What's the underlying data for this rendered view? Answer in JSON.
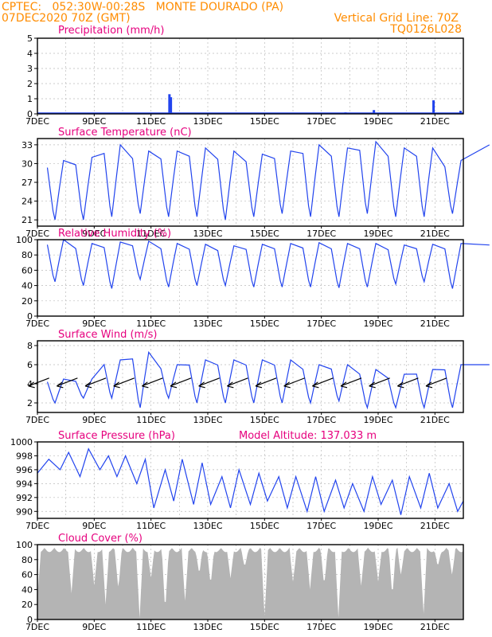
{
  "header": {
    "line1": "CPTEC:   052:30W-00:28S   MONTE DOURADO (PA)",
    "line2": "07DEC2020 70Z (GMT)",
    "grid_note": "Vertical Grid Line: 70Z",
    "run_id": "TQ0126L028"
  },
  "colors": {
    "header": "#ff8c00",
    "panel_title": "#e6007e",
    "series": "#2244ee",
    "cloud_fill": "#b4b4b4",
    "grid": "#bbbbbb"
  },
  "x_tick_labels": [
    "7DEC",
    "9DEC",
    "11DEC",
    "13DEC",
    "15DEC",
    "17DEC",
    "19DEC",
    "21DEC"
  ],
  "chart_data": [
    {
      "id": "precip",
      "type": "bar",
      "title": "Precipitation (mm/h)",
      "x_days": [
        7,
        22
      ],
      "ylim": [
        0,
        5
      ],
      "yticks": [
        0,
        1,
        2,
        3,
        4,
        5
      ],
      "events": [
        [
          9.85,
          0.05
        ],
        [
          11.65,
          1.3
        ],
        [
          11.7,
          1.1
        ],
        [
          17.85,
          0.1
        ],
        [
          18.85,
          0.25
        ],
        [
          20.95,
          0.9
        ],
        [
          21.9,
          0.2
        ]
      ]
    },
    {
      "id": "temp",
      "type": "line",
      "title": "Surface Temperature (nC)",
      "x_days": [
        7,
        22
      ],
      "ylim": [
        20,
        34
      ],
      "yticks": [
        21,
        24,
        27,
        30,
        33
      ],
      "daily_max": [
        30.5,
        31,
        33,
        32,
        32,
        32.5,
        32,
        31.5,
        32,
        33,
        32.5,
        33.5,
        32.5,
        32.5,
        30.5,
        33
      ],
      "daily_min": [
        21,
        21,
        21.5,
        22,
        21.5,
        21.5,
        21,
        21.5,
        22,
        21.5,
        21.5,
        22,
        21.5,
        21.5,
        22
      ]
    },
    {
      "id": "rh",
      "type": "line",
      "title": "Relative Humidity (%)",
      "x_days": [
        7,
        22
      ],
      "ylim": [
        0,
        100
      ],
      "yticks": [
        0,
        20,
        40,
        60,
        80,
        100
      ],
      "daily_max": [
        100,
        95,
        97,
        98,
        95,
        94,
        92,
        94,
        95,
        96,
        95,
        95,
        93,
        94,
        95,
        93
      ],
      "daily_min": [
        45,
        40,
        36,
        48,
        38,
        40,
        40,
        38,
        38,
        38,
        37,
        38,
        42,
        45,
        36
      ]
    },
    {
      "id": "wind",
      "type": "line",
      "title": "Surface Wind (m/s)",
      "x_days": [
        7,
        22
      ],
      "ylim": [
        1,
        8.5
      ],
      "yticks": [
        2,
        4,
        6,
        8
      ],
      "daily_max": [
        4.5,
        4.5,
        6.5,
        7.3,
        6,
        6.5,
        6.5,
        6.5,
        6.5,
        6,
        6,
        5.5,
        5,
        5.5,
        6,
        6
      ],
      "daily_min": [
        2,
        2.5,
        2.5,
        1.5,
        2.5,
        2,
        2,
        2,
        2,
        2,
        2.2,
        1.5,
        1.5,
        1.5,
        1.5
      ],
      "arrow_days": [
        7.3,
        8.3,
        9.3,
        10.3,
        11.3,
        12.3,
        13.3,
        14.3,
        15.3,
        16.3,
        17.3,
        18.3,
        19.3,
        20.3,
        21.3
      ]
    },
    {
      "id": "pres",
      "type": "line",
      "title": "Surface Pressure (hPa)",
      "annotation": "Model Altitude: 137.033 m",
      "x_days": [
        7,
        22
      ],
      "ylim": [
        989,
        1000
      ],
      "yticks": [
        990,
        992,
        994,
        996,
        998,
        1000
      ],
      "series": [
        {
          "day": 7.0,
          "value": 995.5
        },
        {
          "day": 7.4,
          "value": 997.5
        },
        {
          "day": 7.8,
          "value": 996
        },
        {
          "day": 8.1,
          "value": 998.5
        },
        {
          "day": 8.5,
          "value": 995
        },
        {
          "day": 8.8,
          "value": 999
        },
        {
          "day": 9.2,
          "value": 996
        },
        {
          "day": 9.5,
          "value": 998
        },
        {
          "day": 9.8,
          "value": 995
        },
        {
          "day": 10.1,
          "value": 998
        },
        {
          "day": 10.5,
          "value": 994
        },
        {
          "day": 10.8,
          "value": 997.5
        },
        {
          "day": 11.1,
          "value": 990.5
        },
        {
          "day": 11.5,
          "value": 996
        },
        {
          "day": 11.8,
          "value": 991.5
        },
        {
          "day": 12.1,
          "value": 997.5
        },
        {
          "day": 12.5,
          "value": 991
        },
        {
          "day": 12.8,
          "value": 997
        },
        {
          "day": 13.1,
          "value": 991
        },
        {
          "day": 13.5,
          "value": 995
        },
        {
          "day": 13.8,
          "value": 990.5
        },
        {
          "day": 14.1,
          "value": 996
        },
        {
          "day": 14.5,
          "value": 991
        },
        {
          "day": 14.8,
          "value": 995.5
        },
        {
          "day": 15.1,
          "value": 991.5
        },
        {
          "day": 15.5,
          "value": 995
        },
        {
          "day": 15.8,
          "value": 990.5
        },
        {
          "day": 16.1,
          "value": 995
        },
        {
          "day": 16.5,
          "value": 990
        },
        {
          "day": 16.8,
          "value": 995
        },
        {
          "day": 17.1,
          "value": 990
        },
        {
          "day": 17.5,
          "value": 994.5
        },
        {
          "day": 17.8,
          "value": 990.5
        },
        {
          "day": 18.1,
          "value": 994
        },
        {
          "day": 18.5,
          "value": 990
        },
        {
          "day": 18.8,
          "value": 995
        },
        {
          "day": 19.1,
          "value": 991
        },
        {
          "day": 19.5,
          "value": 994.5
        },
        {
          "day": 19.8,
          "value": 989.5
        },
        {
          "day": 20.1,
          "value": 995
        },
        {
          "day": 20.5,
          "value": 990.5
        },
        {
          "day": 20.8,
          "value": 995.5
        },
        {
          "day": 21.1,
          "value": 990.5
        },
        {
          "day": 21.5,
          "value": 994
        },
        {
          "day": 21.8,
          "value": 990
        },
        {
          "day": 22.0,
          "value": 991.5
        }
      ]
    },
    {
      "id": "cloud",
      "type": "area",
      "title": "Cloud Cover (%)",
      "x_days": [
        7,
        22
      ],
      "ylim": [
        0,
        100
      ],
      "yticks": [
        0,
        20,
        40,
        60,
        80,
        100
      ],
      "dips": [
        [
          7.0,
          30
        ],
        [
          8.2,
          35
        ],
        [
          9.0,
          45
        ],
        [
          9.4,
          20
        ],
        [
          9.85,
          40
        ],
        [
          10.6,
          2
        ],
        [
          11.0,
          55
        ],
        [
          11.5,
          10
        ],
        [
          12.2,
          25
        ],
        [
          12.7,
          60
        ],
        [
          13.1,
          45
        ],
        [
          13.8,
          55
        ],
        [
          14.3,
          70
        ],
        [
          15.0,
          5
        ],
        [
          16.0,
          50
        ],
        [
          16.6,
          40
        ],
        [
          17.1,
          45
        ],
        [
          17.6,
          3
        ],
        [
          18.4,
          45
        ],
        [
          19.0,
          50
        ],
        [
          19.5,
          30
        ],
        [
          19.8,
          60
        ],
        [
          20.6,
          8
        ],
        [
          21.1,
          70
        ],
        [
          21.6,
          60
        ]
      ]
    }
  ]
}
